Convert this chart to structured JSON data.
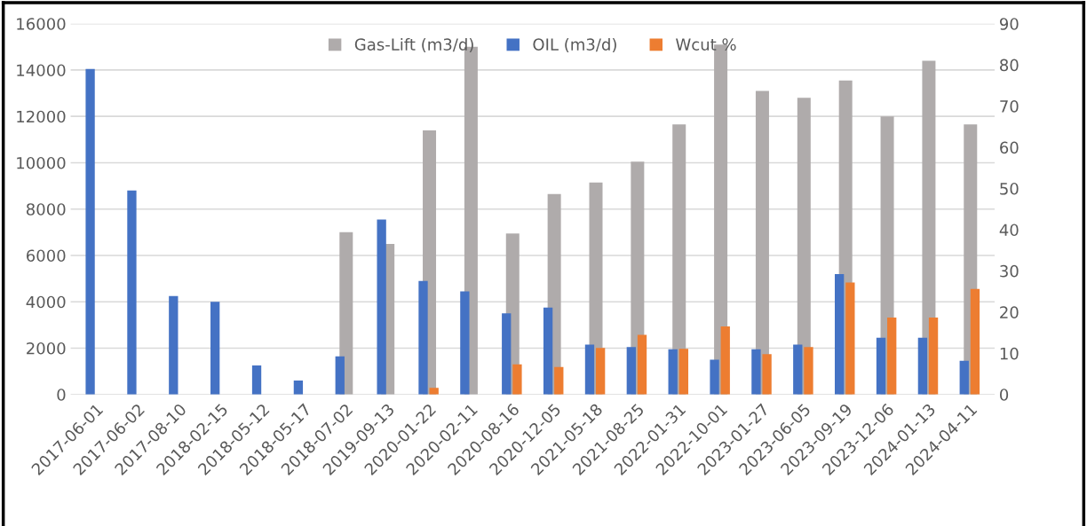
{
  "chart_data": {
    "type": "bar",
    "categories": [
      "2017-06-01",
      "2017-06-02",
      "2017-08-10",
      "2018-02-15",
      "2018-05-12",
      "2018-05-17",
      "2018-07-02",
      "2019-09-13",
      "2020-01-22",
      "2020-02-11",
      "2020-08-16",
      "2020-12-05",
      "2021-05-18",
      "2021-08-25",
      "2022-01-31",
      "2022-10-01",
      "2023-01-27",
      "2023-06-05",
      "2023-09-19",
      "2023-12-06",
      "2024-01-13",
      "2024-04-11"
    ],
    "series": [
      {
        "name": "Gas-Lift (m3/d)",
        "color": "#afabab",
        "values": [
          null,
          null,
          null,
          null,
          null,
          null,
          7000,
          6500,
          11400,
          15000,
          6950,
          8650,
          9150,
          10050,
          11650,
          15100,
          13100,
          12800,
          13550,
          12000,
          14400,
          11650
        ]
      },
      {
        "name": "OIL (m3/d)",
        "color": "#4472c4",
        "values": [
          14050,
          8800,
          4250,
          4000,
          1250,
          600,
          1650,
          7550,
          4900,
          4450,
          3500,
          3750,
          2150,
          2050,
          1950,
          1500,
          1950,
          2150,
          5200,
          2450,
          2450,
          1450
        ]
      },
      {
        "name": "Wcut %",
        "color": "#ed7d31",
        "axis": "y2",
        "values": [
          null,
          null,
          null,
          null,
          null,
          null,
          null,
          null,
          1.6,
          null,
          7.3,
          6.7,
          11.3,
          14.5,
          11.1,
          16.5,
          9.8,
          11.5,
          27.2,
          18.7,
          18.7,
          25.6
        ]
      }
    ],
    "ylim": [
      0,
      16000
    ],
    "yticks": [
      0,
      2000,
      4000,
      6000,
      8000,
      10000,
      12000,
      14000,
      16000
    ],
    "y2lim": [
      0,
      90
    ],
    "y2ticks": [
      0,
      10,
      20,
      30,
      40,
      50,
      60,
      70,
      80,
      90
    ],
    "grid": "y",
    "legend": "top"
  }
}
